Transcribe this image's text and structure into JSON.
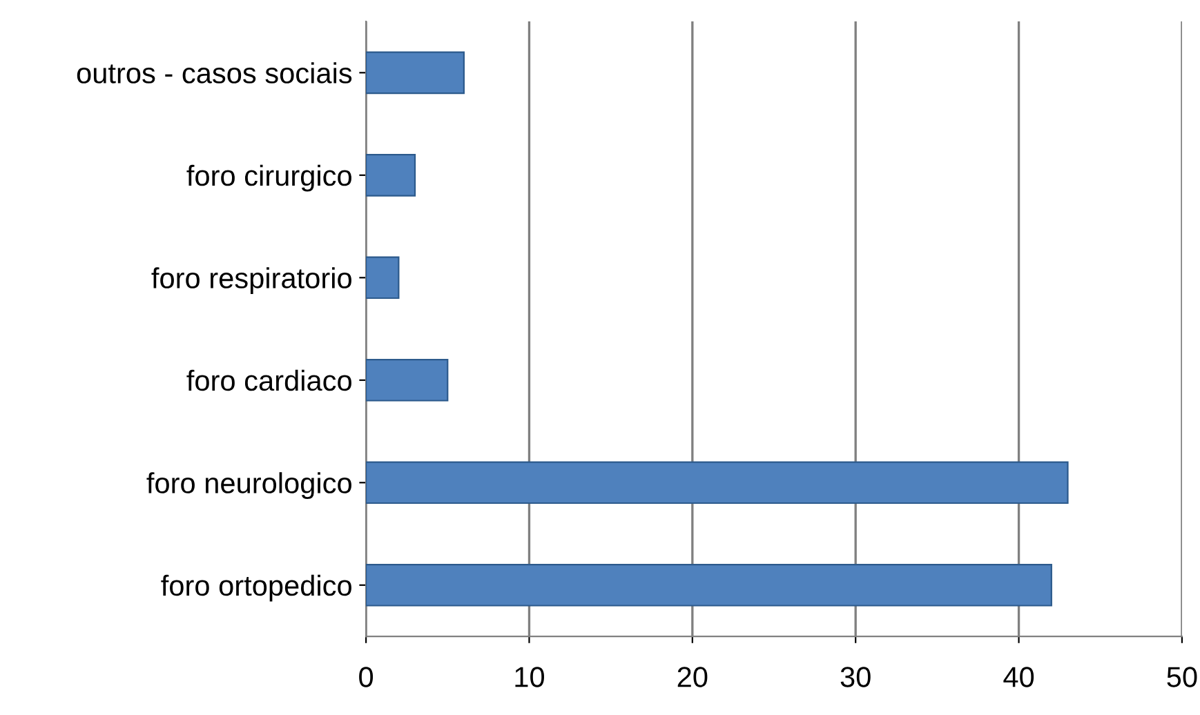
{
  "chart_data": {
    "type": "bar",
    "orientation": "horizontal",
    "categories": [
      "outros - casos sociais",
      "foro cirurgico",
      "foro respiratorio",
      "foro cardiaco",
      "foro neurologico",
      "foro ortopedico"
    ],
    "values": [
      6,
      3,
      2,
      5,
      43,
      42
    ],
    "color": "#4f81bd",
    "xlim": [
      0,
      50
    ],
    "xticks": [
      0,
      10,
      20,
      30,
      40,
      50
    ],
    "grid": "x"
  }
}
